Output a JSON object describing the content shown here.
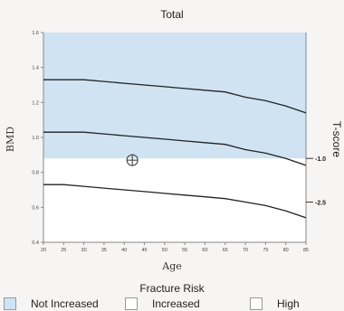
{
  "chart_data": {
    "type": "line",
    "title": "Total",
    "xlabel": "Age",
    "ylabel": "BMD",
    "ylabel_right": "T-score",
    "x": [
      20,
      25,
      30,
      35,
      40,
      45,
      50,
      55,
      60,
      65,
      70,
      75,
      80,
      85
    ],
    "xlim": [
      20,
      85
    ],
    "ylim": [
      0.4,
      1.6
    ],
    "x_ticks": [
      "20",
      "25",
      "30",
      "35",
      "40",
      "45",
      "50",
      "55",
      "60",
      "65",
      "70",
      "75",
      "80",
      "85"
    ],
    "y_ticks": [
      "0.4",
      "0.6",
      "0.8",
      "1.0",
      "1.2",
      "1.4",
      "1.6"
    ],
    "series": [
      {
        "values": [
          1.33,
          1.33,
          1.33,
          1.32,
          1.31,
          1.3,
          1.29,
          1.28,
          1.27,
          1.26,
          1.23,
          1.21,
          1.18,
          1.14
        ]
      },
      {
        "values": [
          1.03,
          1.03,
          1.03,
          1.02,
          1.01,
          1.0,
          0.99,
          0.98,
          0.97,
          0.96,
          0.93,
          0.91,
          0.88,
          0.84
        ]
      },
      {
        "values": [
          0.73,
          0.73,
          0.72,
          0.71,
          0.7,
          0.69,
          0.68,
          0.67,
          0.66,
          0.65,
          0.63,
          0.61,
          0.58,
          0.54
        ]
      }
    ],
    "shaded_region": {
      "y_from": 0.88,
      "y_to": 1.6,
      "color": "#cfe3f3"
    },
    "tscore_marks": [
      {
        "label": "-1.0",
        "y": 0.88
      },
      {
        "label": "-2.5",
        "y": 0.63
      }
    ],
    "patient_point": {
      "x": 42,
      "y": 0.87
    },
    "grid": false
  },
  "legend": {
    "title": "Fracture Risk",
    "items": [
      {
        "label": "Not Increased",
        "color": "#cfe3f3"
      },
      {
        "label": "Increased",
        "color": "#ffffff"
      },
      {
        "label": "High",
        "color": "#ffffff"
      }
    ]
  }
}
